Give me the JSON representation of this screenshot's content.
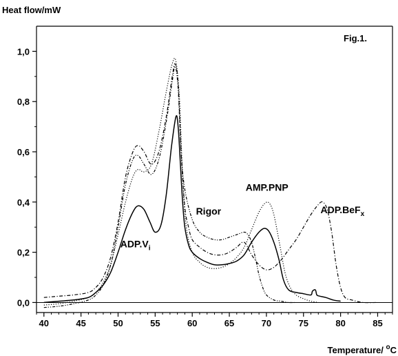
{
  "chart_data": {
    "type": "line",
    "figure_label": "Fig.1.",
    "ylabel": "Heat flow/mW",
    "xlabel_main": "Temperature/ ",
    "xlabel_degree": "o",
    "xlabel_unit": "C",
    "xlim": [
      39,
      87
    ],
    "ylim": [
      -0.04,
      1.1
    ],
    "xticks": [
      40,
      45,
      50,
      55,
      60,
      65,
      70,
      75,
      80,
      85
    ],
    "yticks": [
      0.0,
      0.2,
      0.4,
      0.6,
      0.8,
      1.0
    ],
    "ytick_labels": [
      "0,0",
      "0,2",
      "0,4",
      "0,6",
      "0,8",
      "1,0"
    ],
    "grid": false,
    "baseline": 0.0,
    "annotations": [
      {
        "text": "ADP.V",
        "sub": "i",
        "x": 50.3,
        "y": 0.22
      },
      {
        "text": "Rigor",
        "x": 60.5,
        "y": 0.35
      },
      {
        "text": "AMP.PNP",
        "x": 67.2,
        "y": 0.445
      },
      {
        "text": "ADP.BeF",
        "sub": "x",
        "x": 77.3,
        "y": 0.355
      }
    ],
    "series": [
      {
        "style": "solid",
        "x": [
          40,
          42,
          44,
          46,
          47,
          48,
          49,
          50,
          51,
          52,
          52.7,
          53.5,
          54.3,
          55,
          55.8,
          56.5,
          57.2,
          57.8,
          58.1,
          58.4,
          58.7,
          59,
          59.5,
          60,
          61,
          62,
          63,
          64,
          65,
          66,
          67,
          68,
          69,
          69.7,
          70.3,
          71,
          71.7,
          72.3,
          73,
          74,
          75,
          76,
          76.2,
          76.6,
          76.8,
          77.2,
          78,
          79,
          80
        ],
        "y": [
          0.0,
          0.005,
          0.01,
          0.02,
          0.04,
          0.07,
          0.12,
          0.2,
          0.29,
          0.36,
          0.385,
          0.37,
          0.32,
          0.28,
          0.31,
          0.43,
          0.62,
          0.74,
          0.7,
          0.55,
          0.4,
          0.3,
          0.23,
          0.2,
          0.175,
          0.16,
          0.15,
          0.15,
          0.155,
          0.165,
          0.19,
          0.24,
          0.28,
          0.295,
          0.285,
          0.24,
          0.17,
          0.09,
          0.05,
          0.04,
          0.035,
          0.03,
          0.045,
          0.05,
          0.03,
          0.025,
          0.02,
          0.01,
          0.005
        ]
      },
      {
        "style": "dotted",
        "x": [
          40,
          42,
          44,
          46,
          47,
          48,
          49,
          50,
          51,
          52,
          52.7,
          53.5,
          54.5,
          55.5,
          56.5,
          57.3,
          57.8,
          58.3,
          58.7,
          59.2,
          60,
          61,
          62,
          63,
          64,
          65,
          66,
          67,
          68,
          69,
          69.8,
          70.4,
          71,
          71.8,
          72.5,
          73.2,
          74,
          75,
          76,
          77
        ],
        "y": [
          -0.01,
          -0.005,
          0.005,
          0.02,
          0.04,
          0.08,
          0.15,
          0.27,
          0.4,
          0.5,
          0.53,
          0.52,
          0.55,
          0.68,
          0.84,
          0.95,
          0.96,
          0.8,
          0.5,
          0.3,
          0.2,
          0.16,
          0.14,
          0.135,
          0.14,
          0.155,
          0.18,
          0.22,
          0.29,
          0.36,
          0.395,
          0.395,
          0.35,
          0.23,
          0.12,
          0.06,
          0.03,
          0.015,
          0.005,
          0.0
        ]
      },
      {
        "style": "dashdot",
        "x": [
          40,
          42,
          44,
          46,
          47,
          48,
          49,
          50,
          51,
          52,
          52.7,
          53.5,
          54.5,
          55.5,
          56.5,
          57.3,
          57.7,
          58.1,
          58.5,
          59,
          59.5,
          60,
          61,
          62,
          63,
          64,
          65,
          66,
          67,
          68,
          69,
          70,
          71,
          72,
          73,
          74,
          75,
          76,
          77,
          77.6,
          78.2,
          78.8,
          79.4,
          80,
          80.6,
          81.5,
          83,
          85
        ],
        "y": [
          0.02,
          0.025,
          0.03,
          0.04,
          0.06,
          0.1,
          0.18,
          0.32,
          0.5,
          0.6,
          0.625,
          0.6,
          0.55,
          0.6,
          0.74,
          0.9,
          0.95,
          0.87,
          0.6,
          0.38,
          0.3,
          0.25,
          0.22,
          0.2,
          0.19,
          0.19,
          0.2,
          0.22,
          0.24,
          0.19,
          0.15,
          0.13,
          0.14,
          0.17,
          0.21,
          0.25,
          0.3,
          0.35,
          0.39,
          0.4,
          0.37,
          0.28,
          0.15,
          0.06,
          0.02,
          0.01,
          0.0,
          0.0
        ]
      },
      {
        "style": "dashdotdot",
        "x": [
          40,
          42,
          44,
          46,
          47,
          48,
          49,
          50,
          51,
          52,
          52.7,
          53.5,
          54.5,
          55.5,
          56.5,
          57.3,
          57.7,
          58.1,
          58.5,
          59,
          60,
          61,
          62,
          63,
          64,
          65,
          66,
          67,
          67.5,
          68,
          68.5,
          69,
          69.5,
          70,
          71,
          72,
          73,
          74
        ],
        "y": [
          -0.02,
          -0.015,
          -0.005,
          0.01,
          0.03,
          0.07,
          0.15,
          0.3,
          0.47,
          0.57,
          0.585,
          0.55,
          0.51,
          0.57,
          0.72,
          0.88,
          0.94,
          0.85,
          0.6,
          0.45,
          0.33,
          0.28,
          0.26,
          0.25,
          0.25,
          0.26,
          0.27,
          0.28,
          0.27,
          0.24,
          0.18,
          0.11,
          0.06,
          0.03,
          0.01,
          0.005,
          0.0,
          0.0
        ]
      }
    ]
  }
}
